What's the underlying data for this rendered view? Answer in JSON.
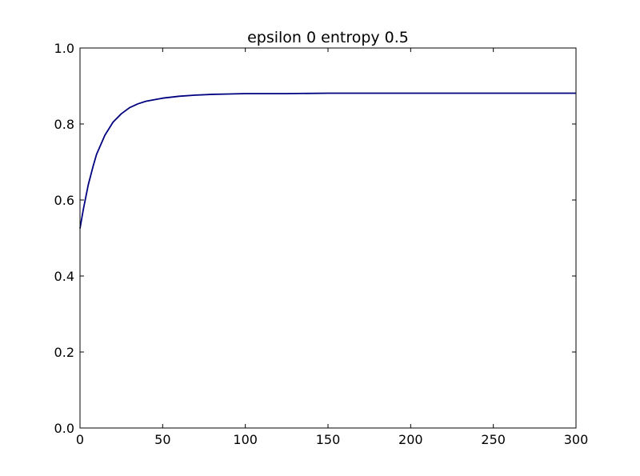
{
  "chart_data": {
    "type": "line",
    "title": "epsilon 0 entropy 0.5",
    "xlabel": "",
    "ylabel": "",
    "xlim": [
      0,
      300
    ],
    "ylim": [
      0,
      1
    ],
    "xticks": [
      0,
      50,
      100,
      150,
      200,
      250,
      300
    ],
    "yticks": [
      0.0,
      0.2,
      0.4,
      0.6,
      0.8,
      1.0
    ],
    "xtick_labels": [
      "0",
      "50",
      "100",
      "150",
      "200",
      "250",
      "300"
    ],
    "ytick_labels": [
      "0.0",
      "0.2",
      "0.4",
      "0.6",
      "0.8",
      "1.0"
    ],
    "grid": false,
    "series": [
      {
        "color": "#000080",
        "x": [
          0,
          2,
          5,
          8,
          10,
          15,
          20,
          25,
          30,
          35,
          40,
          50,
          60,
          70,
          80,
          90,
          100,
          125,
          150,
          200,
          250,
          300
        ],
        "y": [
          0.525,
          0.575,
          0.64,
          0.69,
          0.72,
          0.77,
          0.805,
          0.827,
          0.843,
          0.853,
          0.86,
          0.868,
          0.873,
          0.876,
          0.878,
          0.879,
          0.88,
          0.88,
          0.881,
          0.881,
          0.881,
          0.881
        ]
      }
    ]
  }
}
